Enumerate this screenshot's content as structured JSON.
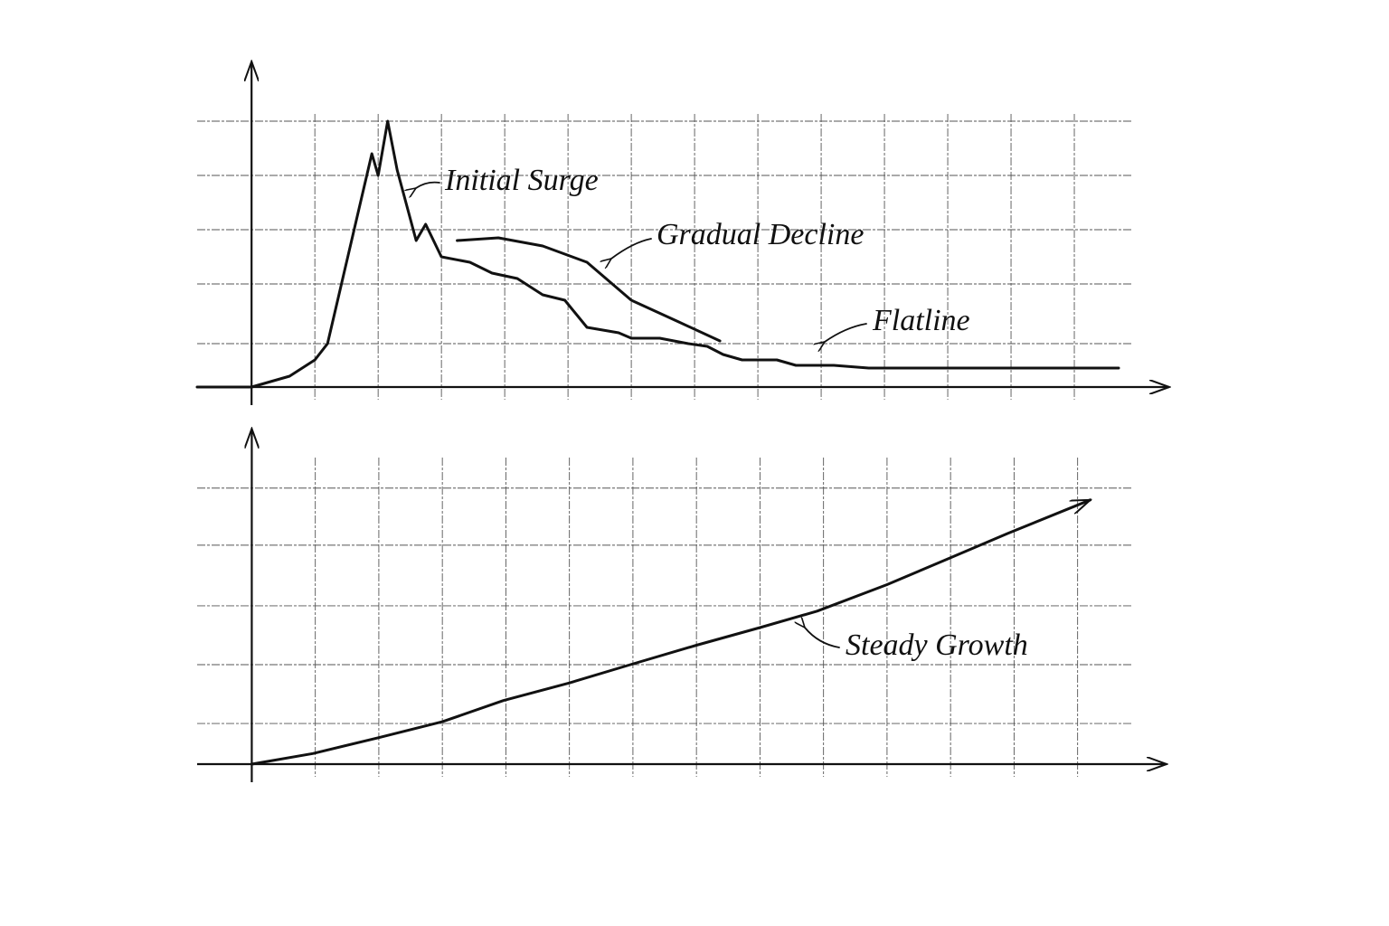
{
  "chart_data": [
    {
      "type": "line",
      "xlim": [
        -0.86,
        14.5
      ],
      "ylim": [
        0,
        6
      ],
      "xticks": [
        1,
        2,
        3,
        4,
        5,
        6,
        7,
        8,
        9,
        10,
        11,
        12,
        13
      ],
      "yticks": [
        0.8,
        1.9,
        2.9,
        3.9,
        4.9
      ],
      "grid": true,
      "annotations": [
        "Initial Surge",
        "Gradual Decline",
        "Flatline"
      ],
      "series": [
        {
          "color": "#111111",
          "x": [
            -0.86,
            0,
            0.6,
            1.0,
            1.2,
            1.4,
            1.6,
            1.9,
            2.0,
            2.15,
            2.3,
            2.6,
            2.75,
            3.0,
            3.45,
            3.8,
            4.2,
            4.6,
            4.95,
            5.3,
            5.8,
            6.0,
            6.45,
            6.9,
            7.2,
            7.45,
            7.75,
            8.3,
            8.6,
            9.2,
            9.75,
            10.3,
            13.7
          ],
          "values": [
            0,
            0,
            0.2,
            0.5,
            0.8,
            1.8,
            2.8,
            4.3,
            3.9,
            4.9,
            4.0,
            2.7,
            3.0,
            2.4,
            2.3,
            2.1,
            2.0,
            1.7,
            1.6,
            1.1,
            1.0,
            0.9,
            0.9,
            0.8,
            0.75,
            0.6,
            0.5,
            0.5,
            0.4,
            0.4,
            0.35,
            0.35,
            0.35
          ]
        },
        {
          "color": "#111111",
          "x": [
            3.25,
            3.9,
            4.6,
            5.3,
            6.0,
            6.75,
            7.4
          ],
          "values": [
            2.7,
            2.75,
            2.6,
            2.3,
            1.6,
            1.2,
            0.85
          ]
        }
      ]
    },
    {
      "type": "line",
      "xlim": [
        -0.86,
        14.4
      ],
      "ylim": [
        0,
        5.7
      ],
      "xticks": [
        1,
        2,
        3,
        4,
        5,
        6,
        7,
        8,
        9,
        10,
        11,
        12,
        13
      ],
      "yticks": [
        0.69,
        1.69,
        2.69,
        3.72,
        4.69
      ],
      "grid": true,
      "annotations": [
        "Steady Growth"
      ],
      "series": [
        {
          "color": "#111111",
          "x": [
            0,
            0.96,
            2,
            3,
            3.96,
            5,
            5.96,
            7,
            8,
            8.9,
            10,
            10.9,
            11.9,
            13.2
          ],
          "values": [
            0,
            0.18,
            0.45,
            0.72,
            1.08,
            1.38,
            1.69,
            2.02,
            2.32,
            2.6,
            3.05,
            3.46,
            3.92,
            4.49
          ]
        }
      ]
    }
  ]
}
